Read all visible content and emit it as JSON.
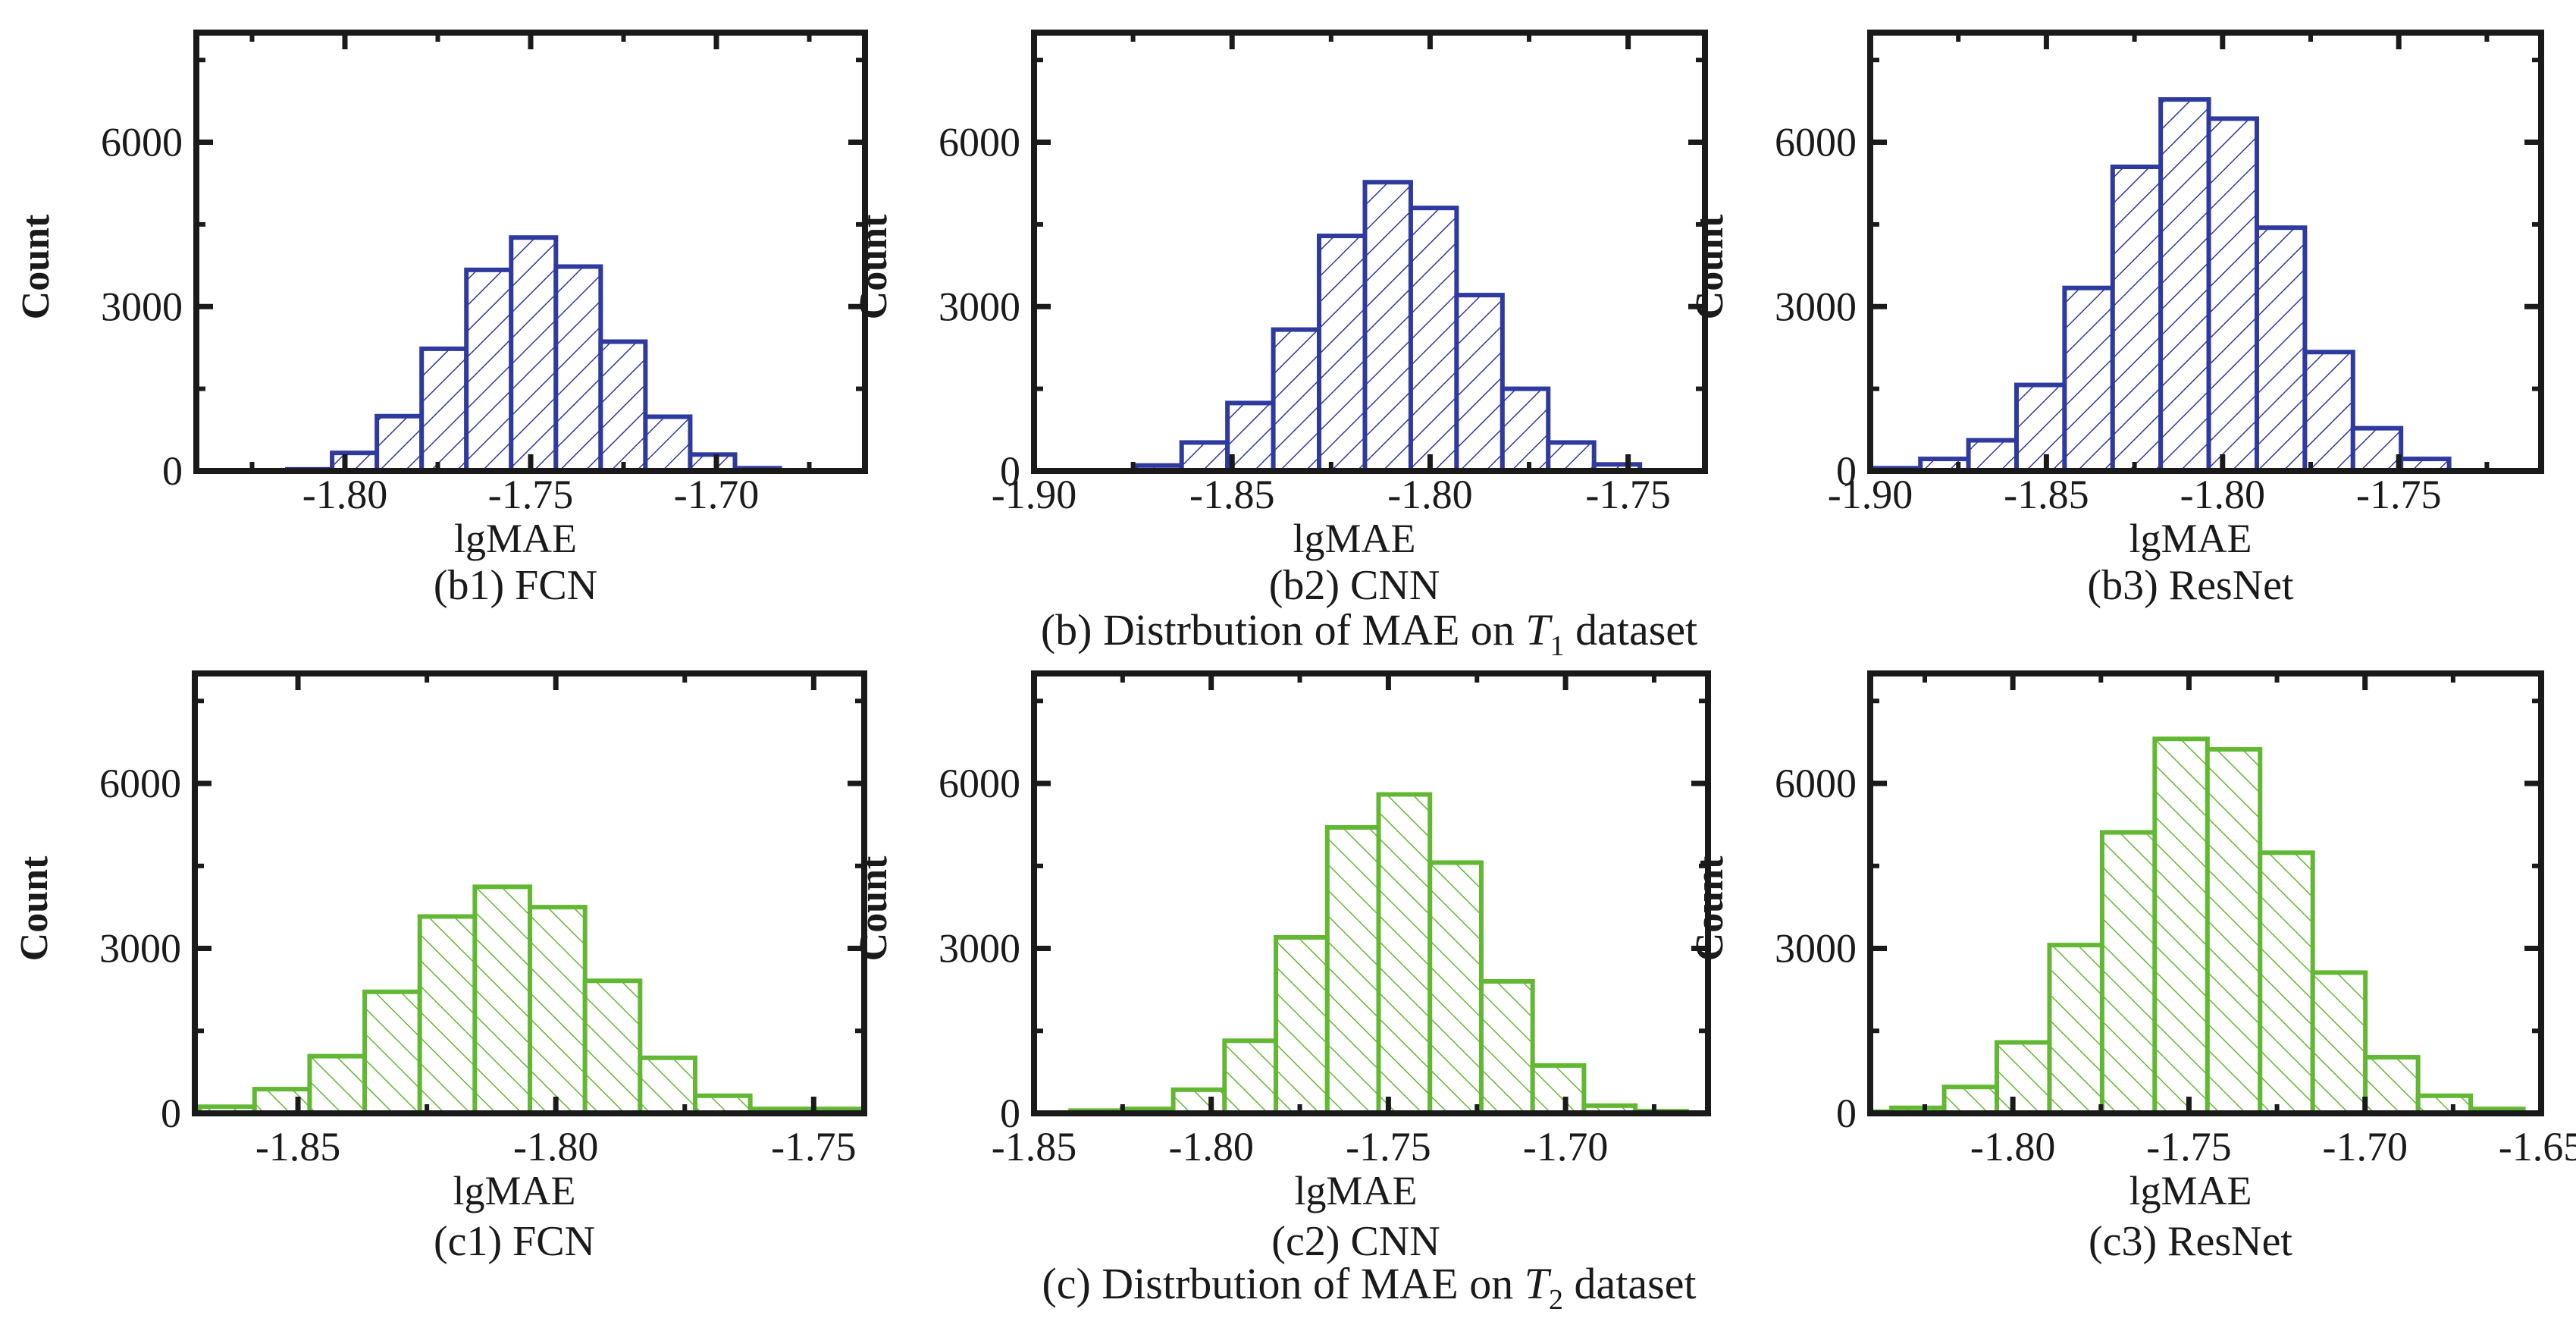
{
  "figure": {
    "captions": [
      {
        "prefix": "(b) Distrbution of  MAE on ",
        "symbol": "T",
        "subscript": "1",
        "suffix": " dataset"
      },
      {
        "prefix": "(c) Distrbution of  MAE on ",
        "symbol": "T",
        "subscript": "2",
        "suffix": " dataset"
      }
    ],
    "colors": {
      "t1_series": "#2e3a9e",
      "t2_series": "#62b833",
      "axis": "#1a1a1a"
    }
  },
  "chart_data": [
    {
      "id": "b1",
      "type": "bar",
      "title": "(b1) FCN",
      "xlabel": "lgMAE",
      "ylabel": "Count",
      "group": "T1",
      "hatch": "forward",
      "xlim": [
        -1.84,
        -1.66
      ],
      "ylim": [
        0,
        8000
      ],
      "xticks": [
        -1.8,
        -1.75,
        -1.7
      ],
      "xtick_labels": [
        "-1.80",
        "-1.75",
        "-1.70"
      ],
      "xminor": [
        -1.825,
        -1.775,
        -1.725,
        -1.675
      ],
      "yticks": [
        0,
        3000,
        6000
      ],
      "ytick_labels": [
        "0",
        "3000",
        "6000"
      ],
      "yminor": [
        1500,
        4500,
        7500
      ],
      "bin_start": -1.8155,
      "bin_width": 0.01205,
      "values": [
        30,
        330,
        1000,
        2230,
        3670,
        4260,
        3730,
        2360,
        990,
        300,
        50
      ]
    },
    {
      "id": "b2",
      "type": "bar",
      "title": "(b2) CNN",
      "xlabel": "lgMAE",
      "ylabel": "Count",
      "group": "T1",
      "hatch": "forward",
      "xlim": [
        -1.9,
        -1.7306
      ],
      "ylim": [
        0,
        8000
      ],
      "xticks": [
        -1.9,
        -1.85,
        -1.8,
        -1.75
      ],
      "xtick_labels": [
        "-1.90",
        "-1.85",
        "-1.80",
        "-1.75"
      ],
      "xminor": [
        -1.875,
        -1.825,
        -1.775
      ],
      "yticks": [
        0,
        3000,
        6000
      ],
      "ytick_labels": [
        "0",
        "3000",
        "6000"
      ],
      "yminor": [
        1500,
        4500,
        7500
      ],
      "bin_start": -1.8743,
      "bin_width": 0.01157,
      "values": [
        100,
        520,
        1240,
        2580,
        4290,
        5270,
        4800,
        3210,
        1500,
        520,
        120
      ]
    },
    {
      "id": "b3",
      "type": "bar",
      "title": "(b3) ResNet",
      "xlabel": "lgMAE",
      "ylabel": "Count",
      "group": "T1",
      "hatch": "forward",
      "xlim": [
        -1.9,
        -1.7096
      ],
      "ylim": [
        0,
        8000
      ],
      "xticks": [
        -1.9,
        -1.85,
        -1.8,
        -1.75
      ],
      "xtick_labels": [
        "-1.90",
        "-1.85",
        "-1.80",
        "-1.75"
      ],
      "xminor": [
        -1.875,
        -1.825,
        -1.775,
        -1.725
      ],
      "yticks": [
        0,
        3000,
        6000
      ],
      "ytick_labels": [
        "0",
        "3000",
        "6000"
      ],
      "yminor": [
        1500,
        4500,
        7500
      ],
      "bin_start": -1.8994,
      "bin_width": 0.01364,
      "values": [
        50,
        220,
        560,
        1570,
        3340,
        5550,
        6780,
        6430,
        4440,
        2170,
        780,
        220
      ]
    },
    {
      "id": "c1",
      "type": "bar",
      "title": "(c1) FCN",
      "xlabel": "lgMAE",
      "ylabel": "Count",
      "group": "T2",
      "hatch": "backward",
      "xlim": [
        -1.87,
        -1.7402
      ],
      "ylim": [
        0,
        8000
      ],
      "xticks": [
        -1.85,
        -1.8,
        -1.75
      ],
      "xtick_labels": [
        "-1.85",
        "-1.80",
        "-1.75"
      ],
      "xminor": [
        -1.825,
        -1.775
      ],
      "yticks": [
        0,
        3000,
        6000
      ],
      "ytick_labels": [
        "0",
        "3000",
        "6000"
      ],
      "yminor": [
        1500,
        4500,
        7500
      ],
      "bin_start": -1.8691,
      "bin_width": 0.01068,
      "values": [
        120,
        440,
        1040,
        2210,
        3580,
        4120,
        3750,
        2410,
        1010,
        320,
        80,
        80
      ]
    },
    {
      "id": "c2",
      "type": "bar",
      "title": "(c2) CNN",
      "xlabel": "lgMAE",
      "ylabel": "Count",
      "group": "T2",
      "hatch": "backward",
      "xlim": [
        -1.85,
        -1.6598
      ],
      "ylim": [
        0,
        8000
      ],
      "xticks": [
        -1.85,
        -1.8,
        -1.75,
        -1.7
      ],
      "xtick_labels": [
        "-1.85",
        "-1.80",
        "-1.75",
        "-1.70"
      ],
      "xminor": [
        -1.825,
        -1.775,
        -1.725,
        -1.675
      ],
      "yticks": [
        0,
        3000,
        6000
      ],
      "ytick_labels": [
        "0",
        "3000",
        "6000"
      ],
      "yminor": [
        1500,
        4500,
        7500
      ],
      "bin_start": -1.8397,
      "bin_width": 0.01449,
      "values": [
        50,
        80,
        430,
        1320,
        3200,
        5200,
        5800,
        4560,
        2400,
        870,
        140,
        40
      ]
    },
    {
      "id": "c3",
      "type": "bar",
      "title": "(c3) ResNet",
      "xlabel": "lgMAE",
      "ylabel": "Count",
      "group": "T2",
      "hatch": "backward",
      "xlim": [
        -1.8405,
        -1.65
      ],
      "ylim": [
        0,
        8000
      ],
      "xticks": [
        -1.8,
        -1.75,
        -1.7,
        -1.65
      ],
      "xtick_labels": [
        "-1.80",
        "-1.75",
        "-1.70",
        "-1.65"
      ],
      "xminor": [
        -1.825,
        -1.775,
        -1.725,
        -1.675
      ],
      "yticks": [
        0,
        3000,
        6000
      ],
      "ytick_labels": [
        "0",
        "3000",
        "6000"
      ],
      "yminor": [
        1500,
        4500,
        7500
      ],
      "bin_start": -1.8494,
      "bin_width": 0.01495,
      "values": [
        30,
        100,
        480,
        1290,
        3060,
        5110,
        6810,
        6620,
        4740,
        2560,
        1020,
        320,
        80
      ]
    }
  ]
}
